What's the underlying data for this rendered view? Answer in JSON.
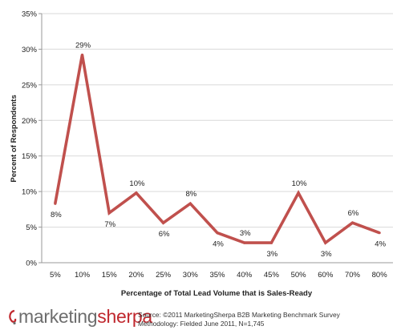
{
  "chart_data": {
    "type": "line",
    "xlabel": "Percentage of Total Lead Volume that is Sales-Ready",
    "ylabel": "Percent of Respondents",
    "ylim": [
      0,
      35
    ],
    "yticks": [
      0,
      5,
      10,
      15,
      20,
      25,
      30,
      35
    ],
    "ytick_labels": [
      "0%",
      "5%",
      "10%",
      "15%",
      "20%",
      "25%",
      "30%",
      "35%"
    ],
    "categories": [
      "5%",
      "10%",
      "15%",
      "20%",
      "25%",
      "30%",
      "35%",
      "40%",
      "45%",
      "50%",
      "60%",
      "70%",
      "80%"
    ],
    "values": [
      8.3,
      29.2,
      7.0,
      9.8,
      5.6,
      8.3,
      4.2,
      2.8,
      2.8,
      9.8,
      2.8,
      5.6,
      4.2
    ],
    "data_labels": [
      "8%",
      "29%",
      "7%",
      "10%",
      "6%",
      "8%",
      "4%",
      "3%",
      "3%",
      "10%",
      "3%",
      "6%",
      "4%"
    ],
    "label_positions": [
      "below",
      "above",
      "below",
      "above",
      "below",
      "above",
      "below",
      "above",
      "below",
      "above",
      "below",
      "above",
      "below"
    ],
    "line_color": "#c0504d",
    "grid": true,
    "legend": "none"
  },
  "footer": {
    "logo_text_a": "marketing",
    "logo_text_b": "sherpa",
    "source_line": "Source: ©2011 MarketingSherpa B2B Marketing Benchmark Survey",
    "method_line": "Methodology: Fielded June 2011, N=1,745"
  }
}
